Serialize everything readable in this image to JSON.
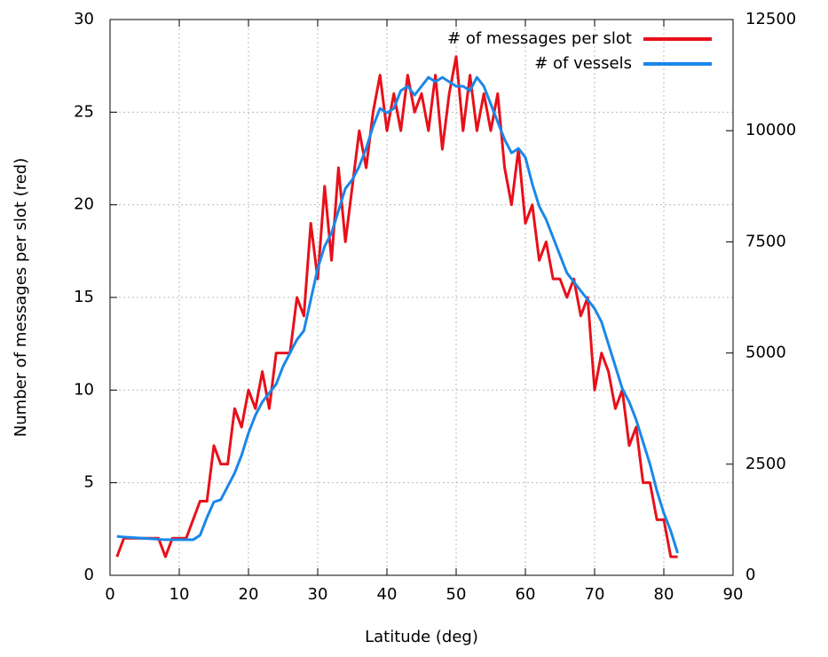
{
  "chart_data": {
    "type": "line",
    "xlabel": "Latitude (deg)",
    "ylabel": "Number of messages per slot (red)",
    "x": [
      1,
      2,
      3,
      4,
      5,
      6,
      7,
      8,
      9,
      10,
      11,
      12,
      13,
      14,
      15,
      16,
      17,
      18,
      19,
      20,
      21,
      22,
      23,
      24,
      25,
      26,
      27,
      28,
      29,
      30,
      31,
      32,
      33,
      34,
      35,
      36,
      37,
      38,
      39,
      40,
      41,
      42,
      43,
      44,
      45,
      46,
      47,
      48,
      49,
      50,
      51,
      52,
      53,
      54,
      55,
      56,
      57,
      58,
      59,
      60,
      61,
      62,
      63,
      64,
      65,
      66,
      67,
      68,
      69,
      70,
      71,
      72,
      73,
      74,
      75,
      76,
      77,
      78,
      79,
      80,
      81,
      82
    ],
    "series": [
      {
        "name": "# of messages per slot",
        "color": "#e8101a",
        "axis": "y",
        "values": [
          1,
          2,
          2,
          2,
          2,
          2,
          2,
          1,
          2,
          2,
          2,
          3,
          4,
          4,
          7,
          6,
          6,
          9,
          8,
          10,
          9,
          11,
          9,
          12,
          12,
          12,
          15,
          14,
          19,
          16,
          21,
          17,
          22,
          18,
          21,
          24,
          22,
          25,
          27,
          24,
          26,
          24,
          27,
          25,
          26,
          24,
          27,
          23,
          26,
          28,
          24,
          27,
          24,
          26,
          24,
          26,
          22,
          20,
          23,
          19,
          20,
          17,
          18,
          16,
          16,
          15,
          16,
          14,
          15,
          10,
          12,
          11,
          9,
          10,
          7,
          8,
          5,
          5,
          3,
          3,
          1,
          1
        ]
      },
      {
        "name": "# of vessels",
        "color": "#1a87e8",
        "axis": "y2",
        "values": [
          875,
          860,
          850,
          840,
          830,
          820,
          810,
          800,
          800,
          800,
          800,
          800,
          900,
          1300,
          1650,
          1700,
          2000,
          2300,
          2700,
          3200,
          3600,
          3900,
          4100,
          4300,
          4700,
          5000,
          5300,
          5500,
          6200,
          6900,
          7400,
          7700,
          8200,
          8700,
          8900,
          9200,
          9600,
          10100,
          10500,
          10400,
          10500,
          10900,
          11000,
          10800,
          11000,
          11200,
          11100,
          11200,
          11100,
          11000,
          11000,
          10900,
          11200,
          11000,
          10600,
          10200,
          9800,
          9500,
          9600,
          9400,
          8800,
          8300,
          8000,
          7600,
          7200,
          6800,
          6600,
          6400,
          6200,
          6000,
          5700,
          5200,
          4700,
          4200,
          3900,
          3500,
          3000,
          2500,
          1900,
          1400,
          1000,
          500
        ]
      }
    ],
    "xlim": [
      0,
      90
    ],
    "xticks": [
      0,
      10,
      20,
      30,
      40,
      50,
      60,
      70,
      80,
      90
    ],
    "ylim": [
      0,
      30
    ],
    "yticks": [
      0,
      5,
      10,
      15,
      20,
      25,
      30
    ],
    "y2lim": [
      0,
      12500
    ],
    "y2ticks": [
      0,
      2500,
      5000,
      7500,
      10000,
      12500
    ],
    "grid": true,
    "legend": "top-right"
  }
}
